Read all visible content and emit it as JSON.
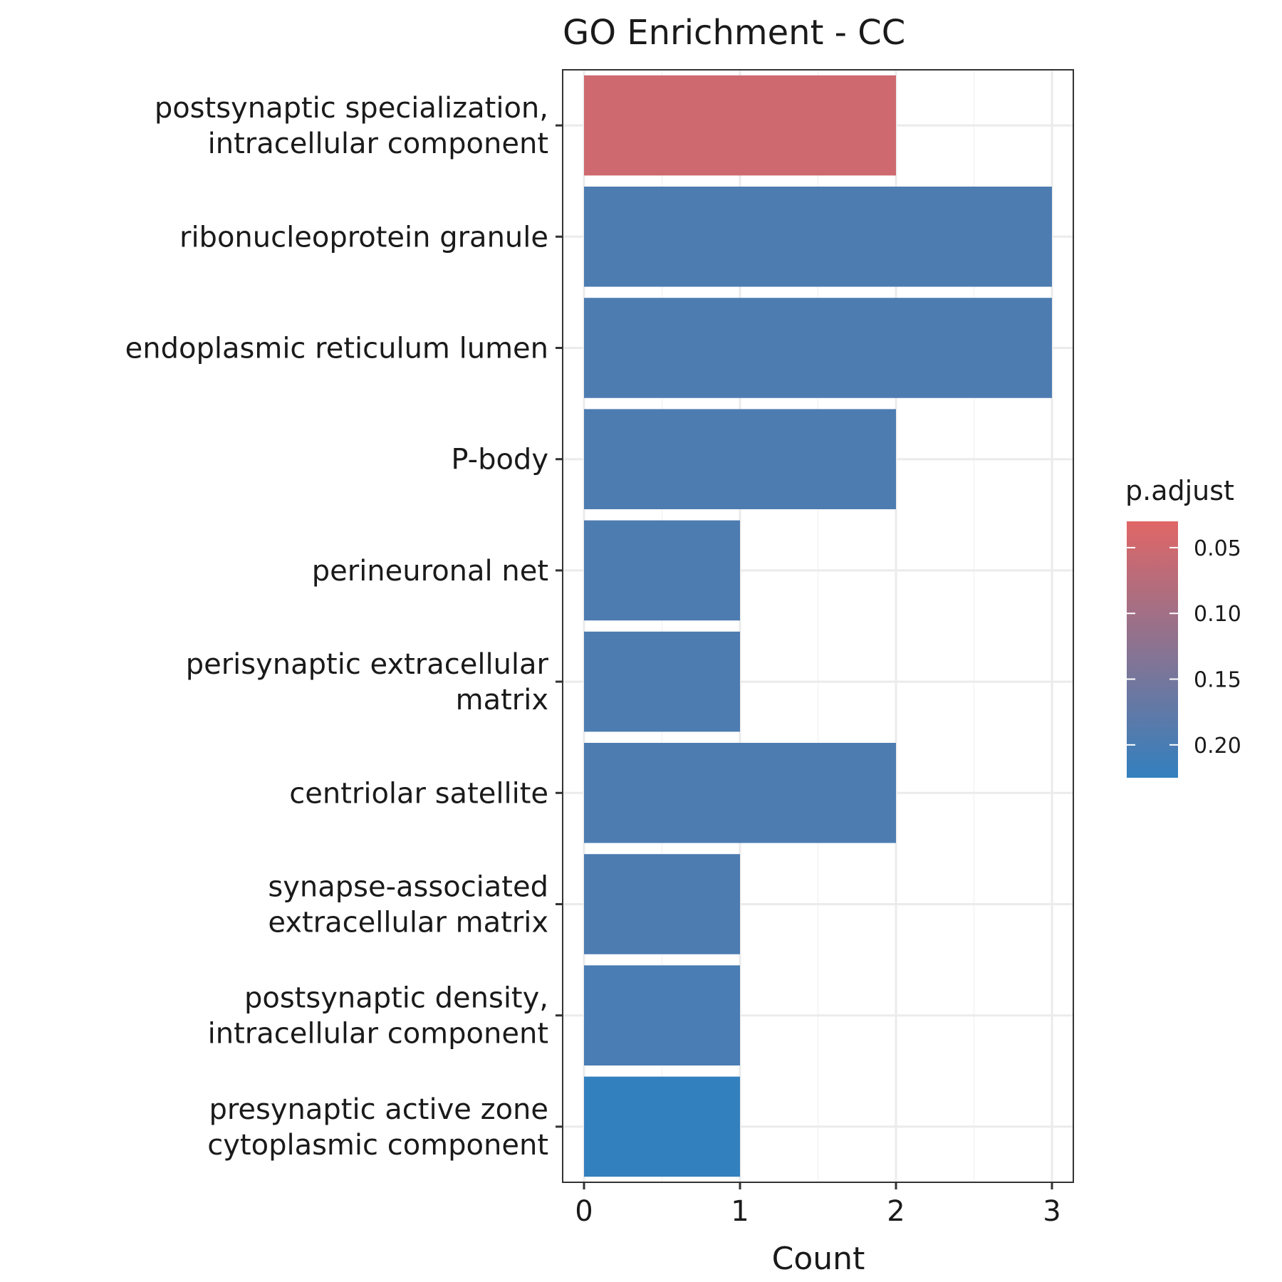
{
  "chart_data": {
    "type": "bar",
    "orientation": "horizontal",
    "title": "GO Enrichment - CC",
    "xlabel": "Count",
    "ylabel": "",
    "xlim": [
      0,
      3.15
    ],
    "x_ticks": [
      0,
      1,
      2,
      3
    ],
    "grid": true,
    "legend_position": "right",
    "categories": [
      [
        "postsynaptic specialization,",
        "intracellular component"
      ],
      [
        "ribonucleoprotein granule"
      ],
      [
        "endoplasmic reticulum lumen"
      ],
      [
        "P-body"
      ],
      [
        "perineuronal net"
      ],
      [
        "perisynaptic extracellular",
        "matrix"
      ],
      [
        "centriolar satellite"
      ],
      [
        "synapse-associated",
        "extracellular matrix"
      ],
      [
        "postsynaptic density,",
        "intracellular component"
      ],
      [
        "presynaptic active zone",
        "cytoplasmic component"
      ]
    ],
    "values": [
      2,
      3,
      3,
      2,
      1,
      1,
      2,
      1,
      1,
      1
    ],
    "p_adjust": [
      0.05,
      0.196,
      0.196,
      0.196,
      0.196,
      0.196,
      0.196,
      0.196,
      0.2,
      0.225
    ],
    "colorbar": {
      "title": "p.adjust",
      "range": [
        0.03,
        0.225
      ],
      "ticks": [
        "0.05",
        "0.10",
        "0.15",
        "0.20"
      ],
      "tick_values": [
        0.05,
        0.1,
        0.15,
        0.2
      ],
      "color_low": "#E06666",
      "color_high": "#3380BE"
    }
  }
}
